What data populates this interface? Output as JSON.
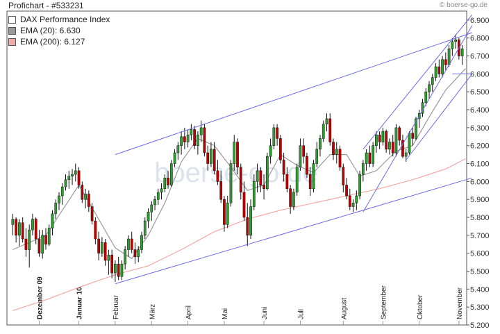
{
  "header": {
    "title": "Profichart - #533231",
    "brand": "boerse-go.de",
    "watermark": "boerse-go.de"
  },
  "legend": [
    {
      "label": "DAX Performance Index",
      "color": "#ffffff"
    },
    {
      "label": "EMA (20): 6.630",
      "color": "#999999"
    },
    {
      "label": "EMA (200): 6.127",
      "color": "#f4a7a3"
    }
  ],
  "chart_data": {
    "type": "candlestick",
    "ylim": [
      5200,
      6950
    ],
    "yticks": [
      "5.200",
      "5.300",
      "5.400",
      "5.500",
      "5.600",
      "5.700",
      "5.800",
      "5.900",
      "6.000",
      "6.100",
      "6.200",
      "6.300",
      "6.400",
      "6.500",
      "6.600",
      "6.700",
      "6.800",
      "6.900"
    ],
    "ytick_values": [
      5200,
      5300,
      5400,
      5500,
      5600,
      5700,
      5800,
      5900,
      6000,
      6100,
      6200,
      6300,
      6400,
      6500,
      6600,
      6700,
      6800,
      6900
    ],
    "xticks": [
      {
        "label": "Dezember 09",
        "index": 8,
        "bold": true
      },
      {
        "label": "Januar 10",
        "index": 20,
        "bold": true
      },
      {
        "label": "Februar",
        "index": 31,
        "bold": false
      },
      {
        "label": "März",
        "index": 42,
        "bold": false
      },
      {
        "label": "April",
        "index": 53,
        "bold": false
      },
      {
        "label": "Mai",
        "index": 64,
        "bold": false
      },
      {
        "label": "Juni",
        "index": 76,
        "bold": false
      },
      {
        "label": "Juli",
        "index": 87,
        "bold": false
      },
      {
        "label": "August",
        "index": 100,
        "bold": false
      },
      {
        "label": "September",
        "index": 112,
        "bold": false
      },
      {
        "label": "Oktober",
        "index": 123,
        "bold": false
      },
      {
        "label": "November",
        "index": 135,
        "bold": false
      }
    ],
    "candles": [
      {
        "o": 5760,
        "h": 5820,
        "l": 5700,
        "c": 5790
      },
      {
        "o": 5790,
        "h": 5800,
        "l": 5660,
        "c": 5700
      },
      {
        "o": 5700,
        "h": 5790,
        "l": 5640,
        "c": 5770
      },
      {
        "o": 5770,
        "h": 5800,
        "l": 5660,
        "c": 5680
      },
      {
        "o": 5680,
        "h": 5740,
        "l": 5580,
        "c": 5620
      },
      {
        "o": 5620,
        "h": 5760,
        "l": 5520,
        "c": 5730
      },
      {
        "o": 5730,
        "h": 5820,
        "l": 5700,
        "c": 5790
      },
      {
        "o": 5790,
        "h": 5800,
        "l": 5650,
        "c": 5680
      },
      {
        "o": 5680,
        "h": 5730,
        "l": 5580,
        "c": 5600
      },
      {
        "o": 5600,
        "h": 5730,
        "l": 5570,
        "c": 5700
      },
      {
        "o": 5700,
        "h": 5740,
        "l": 5620,
        "c": 5650
      },
      {
        "o": 5650,
        "h": 5760,
        "l": 5640,
        "c": 5740
      },
      {
        "o": 5740,
        "h": 5840,
        "l": 5700,
        "c": 5820
      },
      {
        "o": 5820,
        "h": 5900,
        "l": 5790,
        "c": 5880
      },
      {
        "o": 5880,
        "h": 5940,
        "l": 5840,
        "c": 5920
      },
      {
        "o": 5920,
        "h": 5990,
        "l": 5870,
        "c": 5970
      },
      {
        "o": 5970,
        "h": 6040,
        "l": 5950,
        "c": 6010
      },
      {
        "o": 6010,
        "h": 6060,
        "l": 5960,
        "c": 6030
      },
      {
        "o": 6030,
        "h": 6070,
        "l": 5980,
        "c": 6040
      },
      {
        "o": 6040,
        "h": 6100,
        "l": 6000,
        "c": 6060
      },
      {
        "o": 6060,
        "h": 6080,
        "l": 5960,
        "c": 5980
      },
      {
        "o": 5980,
        "h": 6000,
        "l": 5880,
        "c": 5900
      },
      {
        "o": 5900,
        "h": 5960,
        "l": 5850,
        "c": 5930
      },
      {
        "o": 5930,
        "h": 5950,
        "l": 5830,
        "c": 5860
      },
      {
        "o": 5860,
        "h": 5880,
        "l": 5760,
        "c": 5780
      },
      {
        "o": 5780,
        "h": 5800,
        "l": 5650,
        "c": 5680
      },
      {
        "o": 5680,
        "h": 5720,
        "l": 5560,
        "c": 5600
      },
      {
        "o": 5600,
        "h": 5690,
        "l": 5580,
        "c": 5660
      },
      {
        "o": 5660,
        "h": 5680,
        "l": 5530,
        "c": 5560
      },
      {
        "o": 5560,
        "h": 5620,
        "l": 5480,
        "c": 5590
      },
      {
        "o": 5590,
        "h": 5620,
        "l": 5460,
        "c": 5490
      },
      {
        "o": 5490,
        "h": 5560,
        "l": 5440,
        "c": 5540
      },
      {
        "o": 5540,
        "h": 5580,
        "l": 5450,
        "c": 5470
      },
      {
        "o": 5470,
        "h": 5560,
        "l": 5450,
        "c": 5540
      },
      {
        "o": 5540,
        "h": 5640,
        "l": 5510,
        "c": 5620
      },
      {
        "o": 5620,
        "h": 5700,
        "l": 5580,
        "c": 5680
      },
      {
        "o": 5680,
        "h": 5720,
        "l": 5600,
        "c": 5620
      },
      {
        "o": 5620,
        "h": 5660,
        "l": 5540,
        "c": 5580
      },
      {
        "o": 5580,
        "h": 5640,
        "l": 5550,
        "c": 5620
      },
      {
        "o": 5620,
        "h": 5720,
        "l": 5600,
        "c": 5700
      },
      {
        "o": 5700,
        "h": 5800,
        "l": 5680,
        "c": 5780
      },
      {
        "o": 5780,
        "h": 5850,
        "l": 5740,
        "c": 5830
      },
      {
        "o": 5830,
        "h": 5890,
        "l": 5780,
        "c": 5870
      },
      {
        "o": 5870,
        "h": 5920,
        "l": 5840,
        "c": 5900
      },
      {
        "o": 5900,
        "h": 5960,
        "l": 5870,
        "c": 5940
      },
      {
        "o": 5940,
        "h": 5990,
        "l": 5900,
        "c": 5960
      },
      {
        "o": 5960,
        "h": 6040,
        "l": 5940,
        "c": 6020
      },
      {
        "o": 6020,
        "h": 6060,
        "l": 5960,
        "c": 5980
      },
      {
        "o": 5980,
        "h": 6120,
        "l": 5970,
        "c": 6100
      },
      {
        "o": 6100,
        "h": 6180,
        "l": 6080,
        "c": 6160
      },
      {
        "o": 6160,
        "h": 6220,
        "l": 6120,
        "c": 6200
      },
      {
        "o": 6200,
        "h": 6280,
        "l": 6150,
        "c": 6250
      },
      {
        "o": 6250,
        "h": 6300,
        "l": 6180,
        "c": 6220
      },
      {
        "o": 6220,
        "h": 6290,
        "l": 6190,
        "c": 6260
      },
      {
        "o": 6260,
        "h": 6320,
        "l": 6230,
        "c": 6290
      },
      {
        "o": 6290,
        "h": 6310,
        "l": 6180,
        "c": 6200
      },
      {
        "o": 6200,
        "h": 6280,
        "l": 6150,
        "c": 6260
      },
      {
        "o": 6260,
        "h": 6340,
        "l": 6220,
        "c": 6300
      },
      {
        "o": 6300,
        "h": 6320,
        "l": 6140,
        "c": 6160
      },
      {
        "o": 6160,
        "h": 6200,
        "l": 6060,
        "c": 6100
      },
      {
        "o": 6100,
        "h": 6220,
        "l": 6080,
        "c": 6180
      },
      {
        "o": 6180,
        "h": 6220,
        "l": 6040,
        "c": 6060
      },
      {
        "o": 6060,
        "h": 6120,
        "l": 5980,
        "c": 6000
      },
      {
        "o": 6000,
        "h": 6060,
        "l": 5880,
        "c": 5900
      },
      {
        "o": 5900,
        "h": 5920,
        "l": 5720,
        "c": 5760
      },
      {
        "o": 5760,
        "h": 5920,
        "l": 5740,
        "c": 5880
      },
      {
        "o": 5880,
        "h": 6120,
        "l": 5860,
        "c": 6100
      },
      {
        "o": 6100,
        "h": 6260,
        "l": 6060,
        "c": 6220
      },
      {
        "o": 6220,
        "h": 6240,
        "l": 6040,
        "c": 6080
      },
      {
        "o": 6080,
        "h": 6100,
        "l": 5900,
        "c": 5940
      },
      {
        "o": 5940,
        "h": 6000,
        "l": 5780,
        "c": 5800
      },
      {
        "o": 5800,
        "h": 5880,
        "l": 5640,
        "c": 5700
      },
      {
        "o": 5700,
        "h": 5900,
        "l": 5680,
        "c": 5860
      },
      {
        "o": 5860,
        "h": 6040,
        "l": 5840,
        "c": 6000
      },
      {
        "o": 6000,
        "h": 6100,
        "l": 5940,
        "c": 6060
      },
      {
        "o": 6060,
        "h": 6080,
        "l": 5940,
        "c": 5980
      },
      {
        "o": 5980,
        "h": 6040,
        "l": 5900,
        "c": 5960
      },
      {
        "o": 5960,
        "h": 6160,
        "l": 5950,
        "c": 6140
      },
      {
        "o": 6140,
        "h": 6240,
        "l": 6100,
        "c": 6200
      },
      {
        "o": 6200,
        "h": 6320,
        "l": 6180,
        "c": 6300
      },
      {
        "o": 6300,
        "h": 6320,
        "l": 6200,
        "c": 6240
      },
      {
        "o": 6240,
        "h": 6260,
        "l": 6100,
        "c": 6120
      },
      {
        "o": 6120,
        "h": 6160,
        "l": 6000,
        "c": 6040
      },
      {
        "o": 6040,
        "h": 6080,
        "l": 5940,
        "c": 5960
      },
      {
        "o": 5960,
        "h": 5980,
        "l": 5820,
        "c": 5860
      },
      {
        "o": 5860,
        "h": 5960,
        "l": 5840,
        "c": 5940
      },
      {
        "o": 5940,
        "h": 6100,
        "l": 5920,
        "c": 6080
      },
      {
        "o": 6080,
        "h": 6240,
        "l": 6060,
        "c": 6200
      },
      {
        "o": 6200,
        "h": 6240,
        "l": 6100,
        "c": 6140
      },
      {
        "o": 6140,
        "h": 6160,
        "l": 6020,
        "c": 6040
      },
      {
        "o": 6040,
        "h": 6080,
        "l": 5920,
        "c": 5960
      },
      {
        "o": 5960,
        "h": 6120,
        "l": 5940,
        "c": 6100
      },
      {
        "o": 6100,
        "h": 6220,
        "l": 6080,
        "c": 6180
      },
      {
        "o": 6180,
        "h": 6260,
        "l": 6140,
        "c": 6240
      },
      {
        "o": 6240,
        "h": 6340,
        "l": 6220,
        "c": 6320
      },
      {
        "o": 6320,
        "h": 6380,
        "l": 6280,
        "c": 6350
      },
      {
        "o": 6350,
        "h": 6380,
        "l": 6200,
        "c": 6220
      },
      {
        "o": 6220,
        "h": 6240,
        "l": 6120,
        "c": 6150
      },
      {
        "o": 6150,
        "h": 6220,
        "l": 6100,
        "c": 6180
      },
      {
        "o": 6180,
        "h": 6200,
        "l": 6060,
        "c": 6080
      },
      {
        "o": 6080,
        "h": 6100,
        "l": 5940,
        "c": 5980
      },
      {
        "o": 5980,
        "h": 6020,
        "l": 5900,
        "c": 5920
      },
      {
        "o": 5920,
        "h": 5960,
        "l": 5840,
        "c": 5860
      },
      {
        "o": 5860,
        "h": 5900,
        "l": 5830,
        "c": 5880
      },
      {
        "o": 5880,
        "h": 5950,
        "l": 5840,
        "c": 5920
      },
      {
        "o": 5920,
        "h": 6060,
        "l": 5900,
        "c": 6040
      },
      {
        "o": 6040,
        "h": 6120,
        "l": 6000,
        "c": 6100
      },
      {
        "o": 6100,
        "h": 6180,
        "l": 6060,
        "c": 6160
      },
      {
        "o": 6160,
        "h": 6200,
        "l": 6080,
        "c": 6100
      },
      {
        "o": 6100,
        "h": 6220,
        "l": 6080,
        "c": 6200
      },
      {
        "o": 6200,
        "h": 6280,
        "l": 6160,
        "c": 6260
      },
      {
        "o": 6260,
        "h": 6280,
        "l": 6180,
        "c": 6220
      },
      {
        "o": 6220,
        "h": 6300,
        "l": 6200,
        "c": 6280
      },
      {
        "o": 6280,
        "h": 6290,
        "l": 6160,
        "c": 6180
      },
      {
        "o": 6180,
        "h": 6240,
        "l": 6150,
        "c": 6220
      },
      {
        "o": 6220,
        "h": 6260,
        "l": 6140,
        "c": 6160
      },
      {
        "o": 6160,
        "h": 6320,
        "l": 6140,
        "c": 6300
      },
      {
        "o": 6300,
        "h": 6310,
        "l": 6200,
        "c": 6230
      },
      {
        "o": 6230,
        "h": 6260,
        "l": 6130,
        "c": 6140
      },
      {
        "o": 6140,
        "h": 6180,
        "l": 6110,
        "c": 6160
      },
      {
        "o": 6160,
        "h": 6280,
        "l": 6150,
        "c": 6270
      },
      {
        "o": 6270,
        "h": 6300,
        "l": 6200,
        "c": 6240
      },
      {
        "o": 6240,
        "h": 6360,
        "l": 6230,
        "c": 6350
      },
      {
        "o": 6350,
        "h": 6400,
        "l": 6300,
        "c": 6380
      },
      {
        "o": 6380,
        "h": 6460,
        "l": 6360,
        "c": 6440
      },
      {
        "o": 6440,
        "h": 6520,
        "l": 6420,
        "c": 6500
      },
      {
        "o": 6500,
        "h": 6560,
        "l": 6460,
        "c": 6540
      },
      {
        "o": 6540,
        "h": 6600,
        "l": 6500,
        "c": 6580
      },
      {
        "o": 6580,
        "h": 6660,
        "l": 6560,
        "c": 6640
      },
      {
        "o": 6640,
        "h": 6680,
        "l": 6580,
        "c": 6600
      },
      {
        "o": 6600,
        "h": 6700,
        "l": 6580,
        "c": 6680
      },
      {
        "o": 6680,
        "h": 6720,
        "l": 6620,
        "c": 6650
      },
      {
        "o": 6650,
        "h": 6760,
        "l": 6640,
        "c": 6740
      },
      {
        "o": 6740,
        "h": 6800,
        "l": 6700,
        "c": 6780
      },
      {
        "o": 6780,
        "h": 6820,
        "l": 6740,
        "c": 6790
      },
      {
        "o": 6790,
        "h": 6800,
        "l": 6680,
        "c": 6700
      },
      {
        "o": 6700,
        "h": 6760,
        "l": 6650,
        "c": 6740
      }
    ],
    "ema20": [
      [
        0,
        5620
      ],
      [
        10,
        5700
      ],
      [
        20,
        5980
      ],
      [
        26,
        5790
      ],
      [
        31,
        5630
      ],
      [
        36,
        5570
      ],
      [
        41,
        5700
      ],
      [
        46,
        5880
      ],
      [
        51,
        6110
      ],
      [
        56,
        6240
      ],
      [
        61,
        6200
      ],
      [
        66,
        6080
      ],
      [
        71,
        5950
      ],
      [
        76,
        5980
      ],
      [
        81,
        6150
      ],
      [
        86,
        6090
      ],
      [
        91,
        6050
      ],
      [
        96,
        6150
      ],
      [
        101,
        6150
      ],
      [
        105,
        6030
      ],
      [
        110,
        6060
      ],
      [
        116,
        6170
      ],
      [
        121,
        6200
      ],
      [
        126,
        6360
      ],
      [
        131,
        6510
      ],
      [
        137,
        6630
      ]
    ],
    "ema200": [
      [
        0,
        5280
      ],
      [
        10,
        5340
      ],
      [
        20,
        5410
      ],
      [
        31,
        5480
      ],
      [
        41,
        5530
      ],
      [
        51,
        5620
      ],
      [
        61,
        5720
      ],
      [
        71,
        5790
      ],
      [
        81,
        5840
      ],
      [
        91,
        5880
      ],
      [
        101,
        5920
      ],
      [
        111,
        5960
      ],
      [
        121,
        6010
      ],
      [
        131,
        6070
      ],
      [
        137,
        6127
      ]
    ],
    "trendlines": [
      {
        "x1": 31,
        "y1": 6150,
        "x2": 139,
        "y2": 6830
      },
      {
        "x1": 31,
        "y1": 5430,
        "x2": 139,
        "y2": 6020
      },
      {
        "x1": 106,
        "y1": 6180,
        "x2": 139,
        "y2": 6930
      },
      {
        "x1": 106,
        "y1": 5830,
        "x2": 139,
        "y2": 6870
      },
      {
        "x1": 119,
        "y1": 6120,
        "x2": 139,
        "y2": 6600
      },
      {
        "x1": 133,
        "y1": 6600,
        "x2": 139,
        "y2": 6600
      }
    ]
  }
}
